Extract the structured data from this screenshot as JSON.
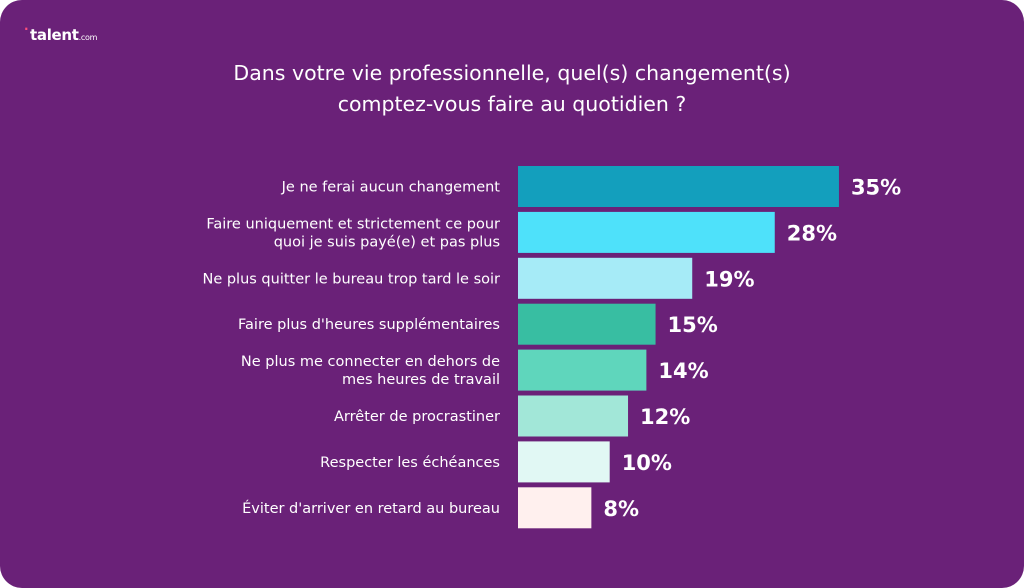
{
  "brand": {
    "logo_dot": "·",
    "logo_text": "talent",
    "logo_suffix": ".com"
  },
  "chart_data": {
    "type": "bar",
    "orientation": "horizontal",
    "title_lines": [
      "Dans votre vie professionnelle, quel(s) changement(s)",
      "comptez-vous faire au quotidien ?"
    ],
    "categories": [
      [
        "Je ne ferai aucun changement"
      ],
      [
        "Faire uniquement et strictement ce pour",
        "quoi je suis payé(e) et pas plus"
      ],
      [
        "Ne plus quitter le bureau trop tard le soir"
      ],
      [
        "Faire plus d'heures supplémentaires"
      ],
      [
        "Ne plus me connecter en dehors de",
        "mes heures de travail"
      ],
      [
        "Arrêter de procrastiner"
      ],
      [
        "Respecter les échéances"
      ],
      [
        "Éviter d'arriver en retard au bureau"
      ]
    ],
    "values": [
      35,
      28,
      19,
      15,
      14,
      12,
      10,
      8
    ],
    "value_labels": [
      "35%",
      "28%",
      "19%",
      "15%",
      "14%",
      "12%",
      "10%",
      "8%"
    ],
    "unit": "%",
    "colors": [
      "#139fbd",
      "#4ee1fa",
      "#a6ebf7",
      "#38bea2",
      "#5fd6bc",
      "#a2e7d8",
      "#e1f8f4",
      "#fff0ee"
    ],
    "grid": false,
    "legend": "none"
  }
}
